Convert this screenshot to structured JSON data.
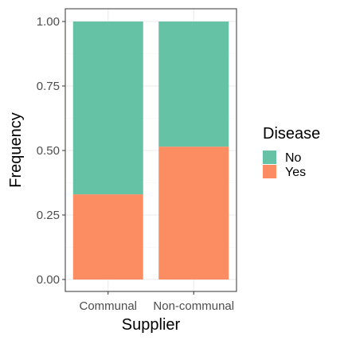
{
  "chart_data": {
    "type": "bar",
    "stacked": true,
    "categories": [
      "Communal",
      "Non-communal"
    ],
    "series": [
      {
        "name": "Yes",
        "values": [
          0.33,
          0.515
        ],
        "color": "#FC8D62"
      },
      {
        "name": "No",
        "values": [
          0.67,
          0.485
        ],
        "color": "#66C2A5"
      }
    ],
    "xlabel": "Supplier",
    "ylabel": "Frequency",
    "ylim": [
      0,
      1.05
    ],
    "yticks": [
      0.0,
      0.25,
      0.5,
      0.75,
      1.0
    ],
    "ytick_labels": [
      "0.00",
      "0.25",
      "0.50",
      "0.75",
      "1.00"
    ],
    "grid": true,
    "legend": {
      "title": "Disease",
      "position": "right",
      "entries": [
        {
          "label": "No",
          "color": "#66C2A5"
        },
        {
          "label": "Yes",
          "color": "#FC8D62"
        }
      ]
    }
  }
}
